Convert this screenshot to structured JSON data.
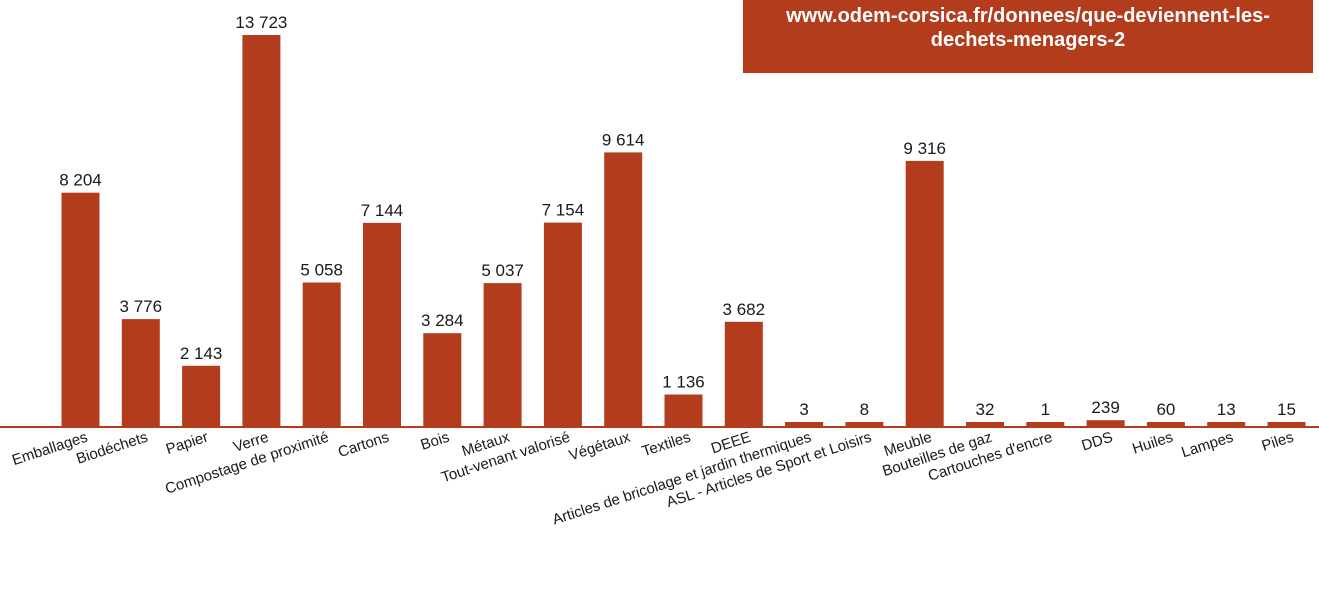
{
  "source_banner": "www.odem-corsica.fr/donnees/que-deviennent-les-dechets-menagers-2",
  "colors": {
    "bar": "#b23c1c",
    "banner": "#b23c1c",
    "axis": "#b23c1c"
  },
  "chart_data": {
    "type": "bar",
    "title": "",
    "xlabel": "",
    "ylabel": "",
    "ylim": [
      0,
      13723
    ],
    "grid": false,
    "legend": "none",
    "categories": [
      "Emballages",
      "Biodéchets",
      "Papier",
      "Verre",
      "Compostage de proximité",
      "Cartons",
      "Bois",
      "Métaux",
      "Tout-venant valorisé",
      "Végétaux",
      "Textiles",
      "DEEE",
      "Articles de bricolage et jardin thermiques",
      "ASL - Articles de Sport et Loisirs",
      "Meuble",
      "Bouteilles de gaz",
      "Cartouches d'encre",
      "DDS",
      "Huiles",
      "Lampes",
      "Piles"
    ],
    "values": [
      8204,
      3776,
      2143,
      13723,
      5058,
      7144,
      3284,
      5037,
      7154,
      9614,
      1136,
      3682,
      3,
      8,
      9316,
      32,
      1,
      239,
      60,
      13,
      15
    ],
    "value_labels": [
      "8 204",
      "3 776",
      "2 143",
      "13 723",
      "5 058",
      "7 144",
      "3 284",
      "5 037",
      "7 154",
      "9 614",
      "1 136",
      "3 682",
      "3",
      "8",
      "9 316",
      "32",
      "1",
      "239",
      "60",
      "13",
      "15"
    ]
  }
}
